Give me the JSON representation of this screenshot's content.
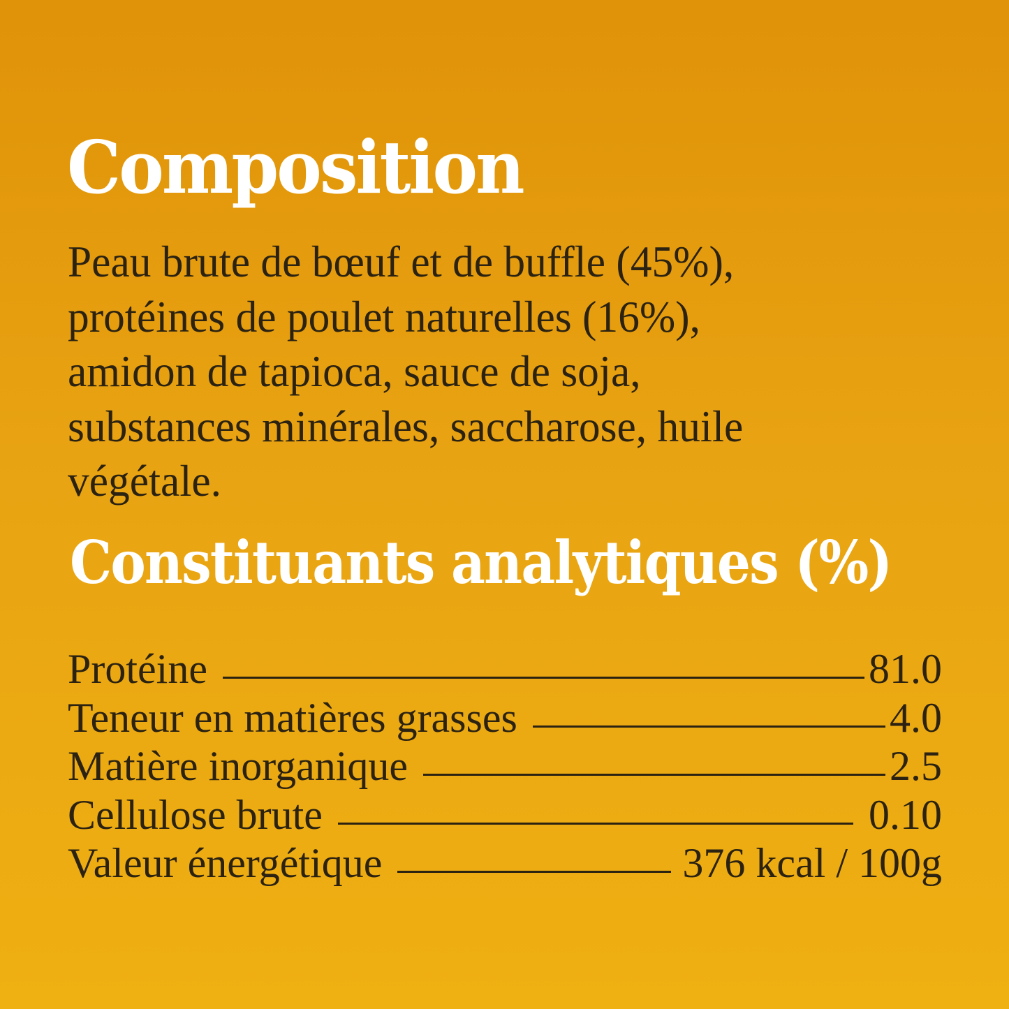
{
  "composition": {
    "title": "Composition",
    "lines": [
      "Peau brute de bœuf et de buffle (45%),",
      "protéines de poulet naturelles (16%),",
      "amidon de tapioca, sauce de soja,",
      "substances minérales, saccharose, huile",
      "végétale."
    ]
  },
  "analytical": {
    "title": "Constituants analytiques (%)",
    "rows": [
      {
        "label": "Protéine",
        "value": "81.0"
      },
      {
        "label": "Teneur en matières grasses",
        "value": "4.0"
      },
      {
        "label": "Matière inorganique",
        "value": "2.5"
      },
      {
        "label": "Cellulose brute",
        "value": "0.10"
      },
      {
        "label": "Valeur énergétique",
        "value": "376 kcal / 100g"
      }
    ]
  },
  "colors": {
    "background_top": "#e09208",
    "background_bottom": "#efb012",
    "heading": "#ffffff",
    "text": "#2b2212"
  }
}
